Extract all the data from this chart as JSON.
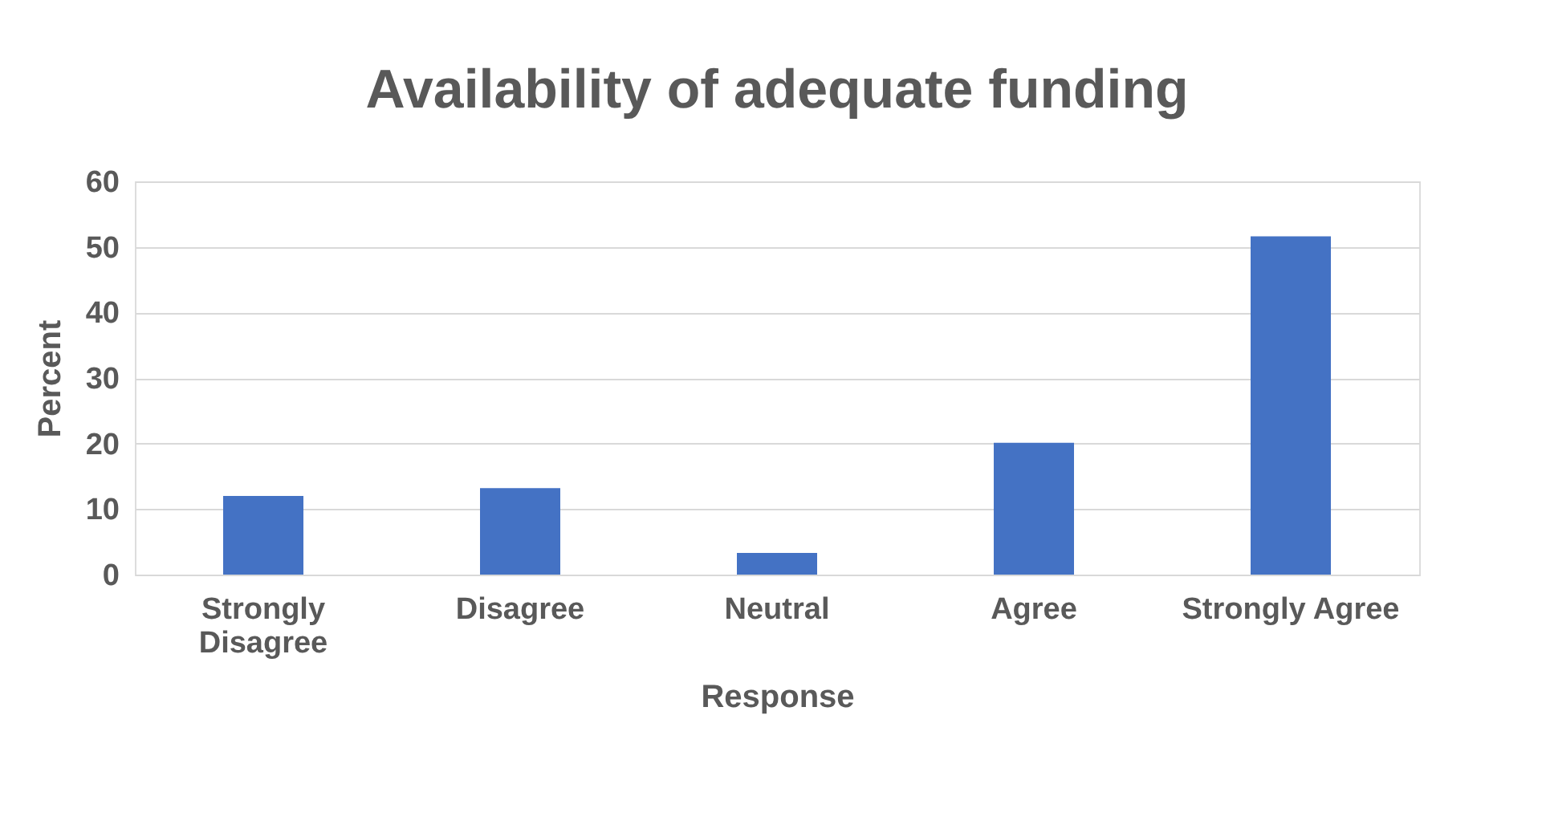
{
  "chart_data": {
    "type": "bar",
    "title": "Availability of adequate funding",
    "xlabel": "Response",
    "ylabel": "Percent",
    "categories": [
      "Strongly Disagree",
      "Disagree",
      "Neutral",
      "Agree",
      "Strongly Agree"
    ],
    "values": [
      12,
      13.2,
      3.3,
      20.1,
      51.6
    ],
    "color": "#4472c4",
    "ylim": [
      0,
      60
    ],
    "yticks": [
      0,
      10,
      20,
      30,
      40,
      50,
      60
    ],
    "grid": "y"
  }
}
